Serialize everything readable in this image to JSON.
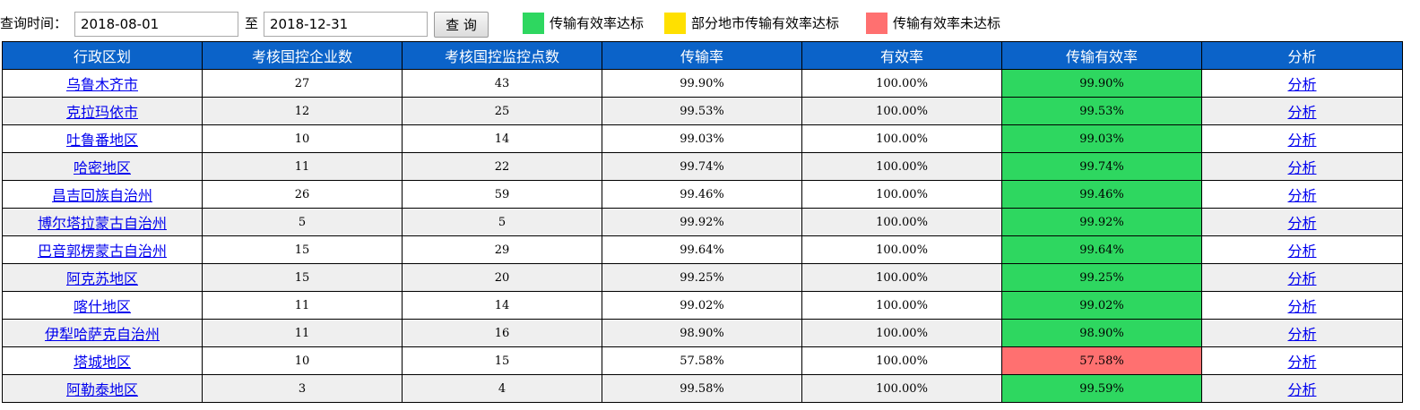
{
  "toolbar": {
    "query_label": "查询时间：",
    "date_from": "2018-08-01",
    "separator": "至",
    "date_to": "2018-12-31",
    "query_button": "查 询"
  },
  "legend": [
    {
      "label": "传输有效率达标",
      "color": "#2ed760"
    },
    {
      "label": "部分地市传输有效率达标",
      "color": "#ffe000"
    },
    {
      "label": "传输有效率未达标",
      "color": "#ff7070"
    }
  ],
  "status_colors": {
    "pass": "#2ed760",
    "partial": "#ffe000",
    "fail": "#ff7070"
  },
  "table": {
    "headers": [
      "行政区划",
      "考核国控企业数",
      "考核国控监控点数",
      "传输率",
      "有效率",
      "传输有效率",
      "分析"
    ],
    "rows": [
      {
        "region": "乌鲁木齐市",
        "enterprises": "27",
        "points": "43",
        "transmission": "99.90%",
        "validity": "100.00%",
        "effective": "99.90%",
        "status": "pass",
        "action": "分析"
      },
      {
        "region": "克拉玛依市",
        "enterprises": "12",
        "points": "25",
        "transmission": "99.53%",
        "validity": "100.00%",
        "effective": "99.53%",
        "status": "pass",
        "action": "分析"
      },
      {
        "region": "吐鲁番地区",
        "enterprises": "10",
        "points": "14",
        "transmission": "99.03%",
        "validity": "100.00%",
        "effective": "99.03%",
        "status": "pass",
        "action": "分析"
      },
      {
        "region": "哈密地区",
        "enterprises": "11",
        "points": "22",
        "transmission": "99.74%",
        "validity": "100.00%",
        "effective": "99.74%",
        "status": "pass",
        "action": "分析"
      },
      {
        "region": "昌吉回族自治州",
        "enterprises": "26",
        "points": "59",
        "transmission": "99.46%",
        "validity": "100.00%",
        "effective": "99.46%",
        "status": "pass",
        "action": "分析"
      },
      {
        "region": "博尔塔拉蒙古自治州",
        "enterprises": "5",
        "points": "5",
        "transmission": "99.92%",
        "validity": "100.00%",
        "effective": "99.92%",
        "status": "pass",
        "action": "分析"
      },
      {
        "region": "巴音郭楞蒙古自治州",
        "enterprises": "15",
        "points": "29",
        "transmission": "99.64%",
        "validity": "100.00%",
        "effective": "99.64%",
        "status": "pass",
        "action": "分析"
      },
      {
        "region": "阿克苏地区",
        "enterprises": "15",
        "points": "20",
        "transmission": "99.25%",
        "validity": "100.00%",
        "effective": "99.25%",
        "status": "pass",
        "action": "分析"
      },
      {
        "region": "喀什地区",
        "enterprises": "11",
        "points": "14",
        "transmission": "99.02%",
        "validity": "100.00%",
        "effective": "99.02%",
        "status": "pass",
        "action": "分析"
      },
      {
        "region": "伊犁哈萨克自治州",
        "enterprises": "11",
        "points": "16",
        "transmission": "98.90%",
        "validity": "100.00%",
        "effective": "98.90%",
        "status": "pass",
        "action": "分析"
      },
      {
        "region": "塔城地区",
        "enterprises": "10",
        "points": "15",
        "transmission": "57.58%",
        "validity": "100.00%",
        "effective": "57.58%",
        "status": "fail",
        "action": "分析"
      },
      {
        "region": "阿勒泰地区",
        "enterprises": "3",
        "points": "4",
        "transmission": "99.58%",
        "validity": "100.00%",
        "effective": "99.59%",
        "status": "pass",
        "action": "分析"
      }
    ]
  }
}
